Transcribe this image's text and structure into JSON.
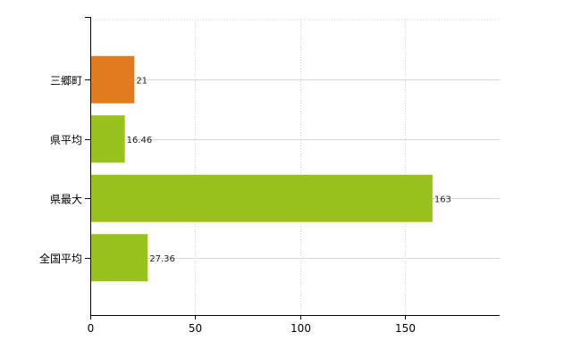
{
  "chart_data": {
    "type": "bar",
    "orientation": "horizontal",
    "categories": [
      "三郷町",
      "県平均",
      "県最大",
      "全国平均"
    ],
    "values": [
      21,
      16.46,
      163,
      27.36
    ],
    "value_labels": [
      "21",
      "16.46",
      "163",
      "27.36"
    ],
    "bar_colors": [
      "#e07b20",
      "#99c21e",
      "#99c21e",
      "#99c21e"
    ],
    "xlim": [
      0,
      195
    ],
    "x_ticks": [
      0,
      50,
      100,
      150
    ],
    "x_tick_labels": [
      "0",
      "50",
      "100",
      "150"
    ],
    "grid": true,
    "title": "",
    "xlabel": "",
    "ylabel": ""
  }
}
